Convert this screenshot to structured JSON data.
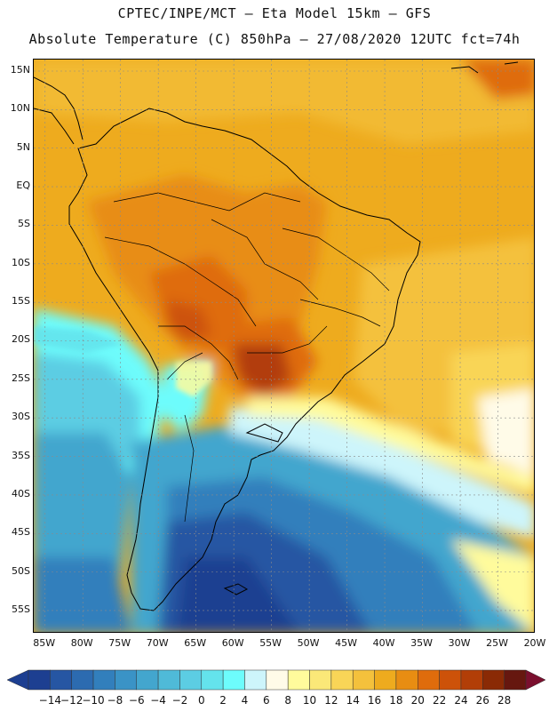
{
  "header": {
    "title_line1": "CPTEC/INPE/MCT –  Eta Model 15km – GFS",
    "title_line2": "Absolute Temperature (C) 850hPa – 27/08/2020 12UTC fct=74h"
  },
  "map": {
    "lat_labels": [
      "15N",
      "10N",
      "5N",
      "EQ",
      "5S",
      "10S",
      "15S",
      "20S",
      "25S",
      "30S",
      "35S",
      "40S",
      "45S",
      "50S",
      "55S"
    ],
    "lon_labels": [
      "85W",
      "80W",
      "75W",
      "70W",
      "65W",
      "60W",
      "55W",
      "50W",
      "45W",
      "40W",
      "35W",
      "30W",
      "25W",
      "20W"
    ],
    "lat_range": [
      -58,
      16.5
    ],
    "lon_range": [
      -86.5,
      -20
    ]
  },
  "colorbar": {
    "labels": [
      "-14",
      "-12",
      "-10",
      "-8",
      "-6",
      "-4",
      "-2",
      "0",
      "2",
      "4",
      "6",
      "8",
      "10",
      "12",
      "14",
      "16",
      "18",
      "20",
      "22",
      "24",
      "26",
      "28"
    ],
    "colors": [
      "#1d3f91",
      "#2656a3",
      "#2c6bb0",
      "#327fbc",
      "#3a93c6",
      "#43a6ce",
      "#4fbad8",
      "#5ccde3",
      "#64e3ec",
      "#6dfcfc",
      "#cdf5fb",
      "#fffbe8",
      "#fffb9c",
      "#fbe878",
      "#f9d557",
      "#f4c13c",
      "#eeab1e",
      "#e88d12",
      "#df6c0c",
      "#cd5209",
      "#b23e07",
      "#8a2a05",
      "#66170f"
    ]
  },
  "colors": {
    "frame": "#000000",
    "grid": "#8a8a8a",
    "coast": "#000000"
  }
}
